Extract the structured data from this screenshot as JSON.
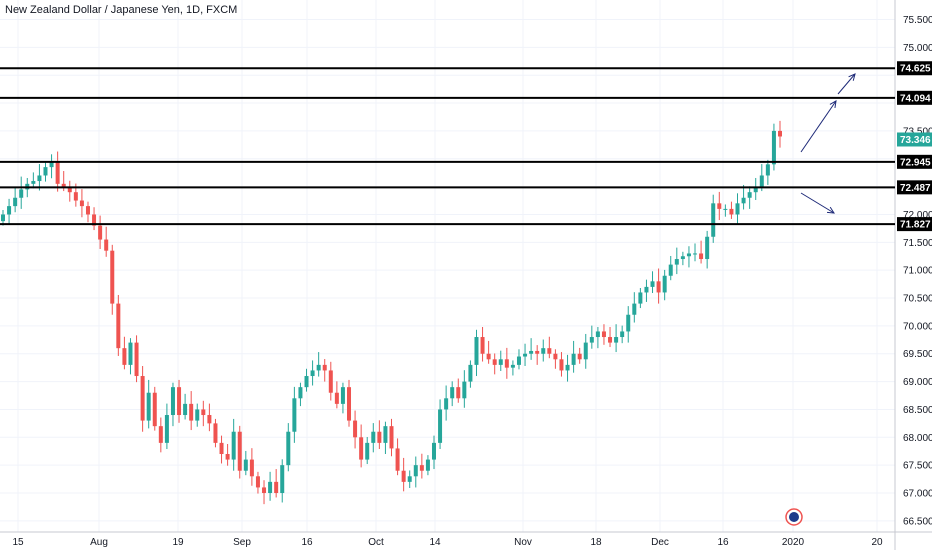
{
  "title": "New Zealand Dollar / Japanese Yen, 1D, FXCM",
  "colors": {
    "up": "#26a69a",
    "down": "#ef5350",
    "grid": "#f0f3fa",
    "line": "#000000",
    "arrow": "#1e2a78",
    "last": "#26a69a"
  },
  "chart_data": {
    "type": "candlestick",
    "title": "New Zealand Dollar / Japanese Yen, 1D, FXCM",
    "ylim": [
      66.3,
      75.85
    ],
    "y_ticks": [
      "66.500",
      "67.000",
      "67.500",
      "68.000",
      "68.500",
      "69.000",
      "69.500",
      "70.000",
      "70.500",
      "71.000",
      "71.500",
      "72.000",
      "72.500",
      "73.000",
      "73.500",
      "74.000",
      "74.500",
      "75.000",
      "75.500"
    ],
    "x_ticks": [
      "15",
      "Aug",
      "19",
      "Sep",
      "16",
      "Oct",
      "14",
      "Nov",
      "18",
      "Dec",
      "16",
      "2020",
      "20"
    ],
    "grid": true,
    "horizontal_lines": [
      {
        "value": 74.625,
        "label": "74.625"
      },
      {
        "value": 74.094,
        "label": "74.094"
      },
      {
        "value": 72.945,
        "label": "72.945"
      },
      {
        "value": 72.487,
        "label": "72.487"
      },
      {
        "value": 71.827,
        "label": "71.827"
      }
    ],
    "last_price": {
      "value": 73.346,
      "label": "73.346"
    },
    "arrows": [
      "up",
      "up",
      "down"
    ],
    "closes": [
      72.0,
      72.15,
      72.3,
      72.45,
      72.55,
      72.6,
      72.7,
      72.85,
      72.95,
      72.55,
      72.5,
      72.4,
      72.25,
      72.15,
      72.0,
      71.8,
      71.55,
      71.35,
      70.4,
      69.6,
      69.3,
      69.7,
      69.1,
      68.3,
      68.8,
      68.2,
      67.9,
      68.4,
      68.9,
      68.4,
      68.6,
      68.3,
      68.5,
      68.4,
      68.25,
      67.9,
      67.7,
      67.6,
      68.1,
      67.4,
      67.6,
      67.3,
      67.1,
      67.0,
      67.2,
      67.0,
      67.5,
      68.1,
      68.7,
      68.9,
      69.1,
      69.2,
      69.3,
      69.2,
      68.8,
      68.6,
      68.9,
      68.3,
      68.0,
      67.6,
      67.9,
      68.1,
      67.9,
      68.2,
      67.8,
      67.4,
      67.2,
      67.3,
      67.5,
      67.4,
      67.6,
      67.9,
      68.5,
      68.7,
      68.9,
      68.7,
      69.0,
      69.3,
      69.8,
      69.5,
      69.4,
      69.3,
      69.4,
      69.25,
      69.3,
      69.45,
      69.5,
      69.55,
      69.5,
      69.6,
      69.5,
      69.4,
      69.2,
      69.3,
      69.5,
      69.4,
      69.7,
      69.8,
      69.9,
      69.8,
      69.7,
      69.8,
      69.9,
      70.2,
      70.4,
      70.6,
      70.7,
      70.8,
      70.6,
      70.9,
      71.1,
      71.2,
      71.25,
      71.3,
      71.3,
      71.2,
      71.6,
      72.2,
      72.1,
      72.1,
      72.0,
      72.2,
      72.3,
      72.4,
      72.5,
      72.7,
      72.9,
      73.5,
      73.4
    ]
  }
}
